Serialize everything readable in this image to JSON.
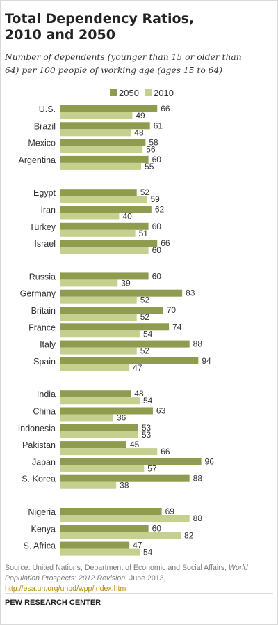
{
  "title": "Total Dependency Ratios,\n2010 and 2050",
  "subtitle": "Number of dependents (younger than 15 or older than\n64) per 100 people of working age (ages 15 to 64)",
  "chart_data": {
    "type": "bar",
    "orientation": "horizontal",
    "xlim": [
      0,
      100
    ],
    "grid": false,
    "legend": {
      "position": "top",
      "entries": [
        "2050",
        "2010"
      ]
    },
    "colors": {
      "2050": "#8f9b4f",
      "2010": "#c5d08f"
    },
    "groups": [
      {
        "categories": [
          "U.S.",
          "Brazil",
          "Mexico",
          "Argentina"
        ]
      },
      {
        "categories": [
          "Egypt",
          "Iran",
          "Turkey",
          "Israel"
        ]
      },
      {
        "categories": [
          "Russia",
          "Germany",
          "Britain",
          "France",
          "Italy",
          "Spain"
        ]
      },
      {
        "categories": [
          "India",
          "China",
          "Indonesia",
          "Pakistan",
          "Japan",
          "S. Korea"
        ]
      },
      {
        "categories": [
          "Nigeria",
          "Kenya",
          "S. Africa"
        ]
      }
    ],
    "categories": [
      "U.S.",
      "Brazil",
      "Mexico",
      "Argentina",
      "Egypt",
      "Iran",
      "Turkey",
      "Israel",
      "Russia",
      "Germany",
      "Britain",
      "France",
      "Italy",
      "Spain",
      "India",
      "China",
      "Indonesia",
      "Pakistan",
      "Japan",
      "S. Korea",
      "Nigeria",
      "Kenya",
      "S. Africa"
    ],
    "series": [
      {
        "name": "2050",
        "values": [
          66,
          61,
          58,
          60,
          52,
          62,
          60,
          66,
          60,
          83,
          70,
          74,
          88,
          94,
          48,
          63,
          53,
          45,
          96,
          88,
          69,
          60,
          47
        ]
      },
      {
        "name": "2010",
        "values": [
          49,
          48,
          56,
          55,
          59,
          40,
          51,
          60,
          39,
          52,
          52,
          54,
          52,
          47,
          54,
          36,
          53,
          66,
          57,
          38,
          88,
          82,
          54
        ]
      }
    ]
  },
  "source": {
    "prefix": "Source: United Nations, Department of Economic and Social Affairs, ",
    "publication": "World Population Prospects: 2012 Revision",
    "suffix": ", June 2013, ",
    "link": "http://esa.un.org/unpd/wpp/index.htm"
  },
  "footer": "PEW RESEARCH CENTER"
}
